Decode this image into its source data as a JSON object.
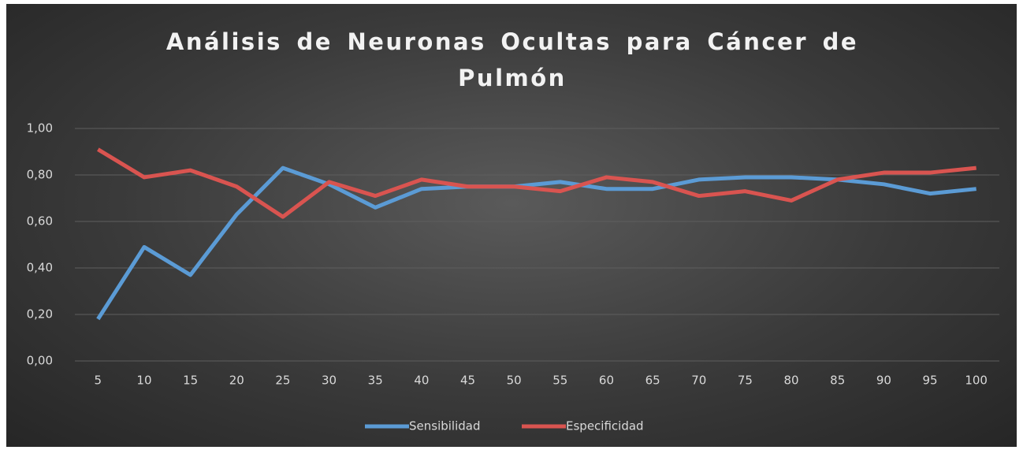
{
  "chart_data": {
    "type": "line",
    "title": "Análisis de Neuronas Ocultas para Cáncer de Pulmón",
    "categories": [
      "5",
      "10",
      "15",
      "20",
      "25",
      "30",
      "35",
      "40",
      "45",
      "50",
      "55",
      "60",
      "65",
      "70",
      "75",
      "80",
      "85",
      "90",
      "95",
      "100"
    ],
    "series": [
      {
        "name": "Sensibilidad",
        "color": "#5b9bd5",
        "values": [
          0.18,
          0.49,
          0.37,
          0.63,
          0.83,
          0.76,
          0.66,
          0.74,
          0.75,
          0.75,
          0.77,
          0.74,
          0.74,
          0.78,
          0.79,
          0.79,
          0.78,
          0.76,
          0.72,
          0.74
        ]
      },
      {
        "name": "Especificidad",
        "color": "#d95450",
        "values": [
          0.91,
          0.79,
          0.82,
          0.75,
          0.62,
          0.77,
          0.71,
          0.78,
          0.75,
          0.75,
          0.73,
          0.79,
          0.77,
          0.71,
          0.73,
          0.69,
          0.78,
          0.81,
          0.81,
          0.83
        ]
      }
    ],
    "ylim": [
      0,
      1
    ],
    "yticks": [
      {
        "value": 0,
        "label": "0,00"
      },
      {
        "value": 0.2,
        "label": "0,20"
      },
      {
        "value": 0.4,
        "label": "0,40"
      },
      {
        "value": 0.6,
        "label": "0,60"
      },
      {
        "value": 0.8,
        "label": "0,80"
      },
      {
        "value": 1,
        "label": "1,00"
      }
    ],
    "grid": true,
    "legend": "bottom"
  }
}
